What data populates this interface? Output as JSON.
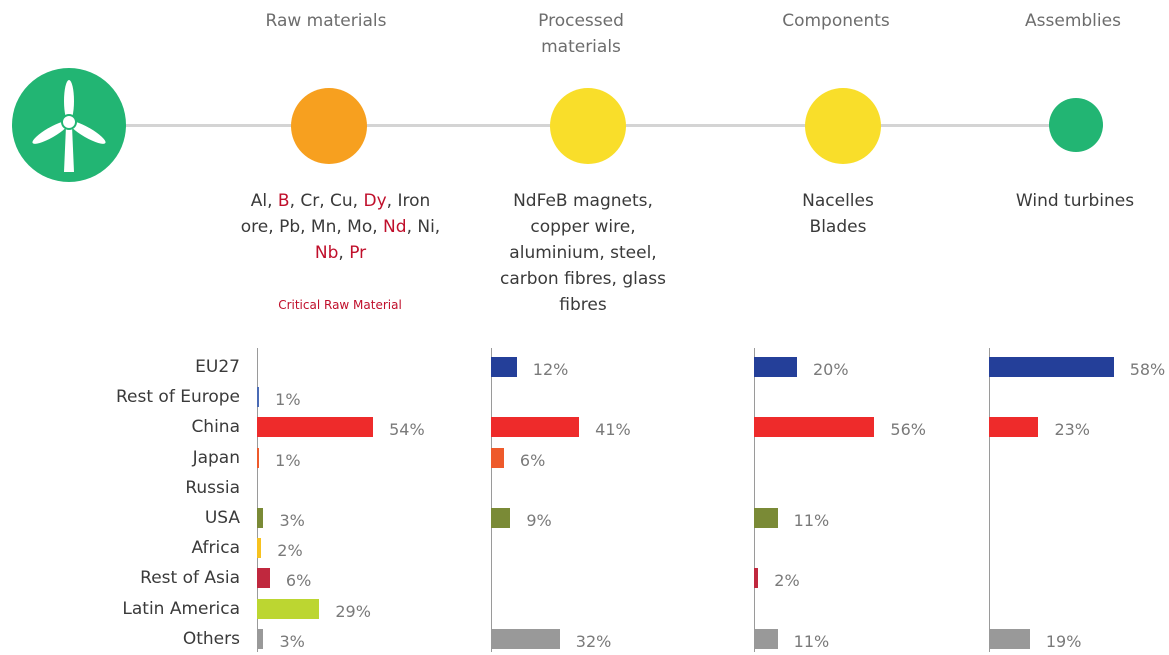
{
  "stages": [
    {
      "title": "Raw materials"
    },
    {
      "title": "Processed materials"
    },
    {
      "title": "Components"
    },
    {
      "title": "Assemblies"
    }
  ],
  "colors": {
    "turbine": "#22b573",
    "raw": "#f7a01f",
    "processed": "#f9de2a",
    "components": "#f9de2a",
    "assemblies": "#22b573",
    "crm": "#c00f2b"
  },
  "materials": {
    "raw_segments": [
      {
        "t": "Al, ",
        "crm": false
      },
      {
        "t": "B",
        "crm": true
      },
      {
        "t": ", Cr, Cu, ",
        "crm": false
      },
      {
        "t": "Dy",
        "crm": true
      },
      {
        "t": ", Iron ore, Pb, Mn, Mo, ",
        "crm": false
      },
      {
        "t": "Nd",
        "crm": true
      },
      {
        "t": ", Ni, ",
        "crm": false
      },
      {
        "t": "Nb",
        "crm": true
      },
      {
        "t": ", ",
        "crm": false
      },
      {
        "t": "Pr",
        "crm": true
      }
    ],
    "crm_note": "Critical Raw Material",
    "processed": "NdFeB magnets, copper wire, aluminium, steel, carbon fibres, glass fibres",
    "components": [
      "Nacelles",
      "Blades"
    ],
    "assemblies": "Wind turbines"
  },
  "chart_data": {
    "type": "bar",
    "orientation": "horizontal",
    "categories": [
      "EU27",
      "Rest of Europe",
      "China",
      "Japan",
      "Russia",
      "USA",
      "Africa",
      "Rest of Asia",
      "Latin America",
      "Others"
    ],
    "category_colors": [
      "#243f99",
      "#4a6bb5",
      "#ee2b2b",
      "#ee5a2b",
      "#9a9a9a",
      "#7a8a36",
      "#f7c21f",
      "#c0283e",
      "#bcd631",
      "#999999"
    ],
    "series": [
      {
        "name": "Raw materials",
        "values": [
          null,
          1,
          54,
          1,
          null,
          3,
          2,
          6,
          29,
          3
        ]
      },
      {
        "name": "Processed materials",
        "values": [
          12,
          null,
          41,
          6,
          null,
          9,
          null,
          null,
          null,
          32
        ]
      },
      {
        "name": "Components",
        "values": [
          20,
          null,
          56,
          null,
          null,
          11,
          null,
          2,
          null,
          11
        ]
      },
      {
        "name": "Assemblies",
        "values": [
          58,
          null,
          23,
          null,
          null,
          null,
          null,
          null,
          null,
          19
        ]
      }
    ],
    "value_suffix": "%"
  }
}
